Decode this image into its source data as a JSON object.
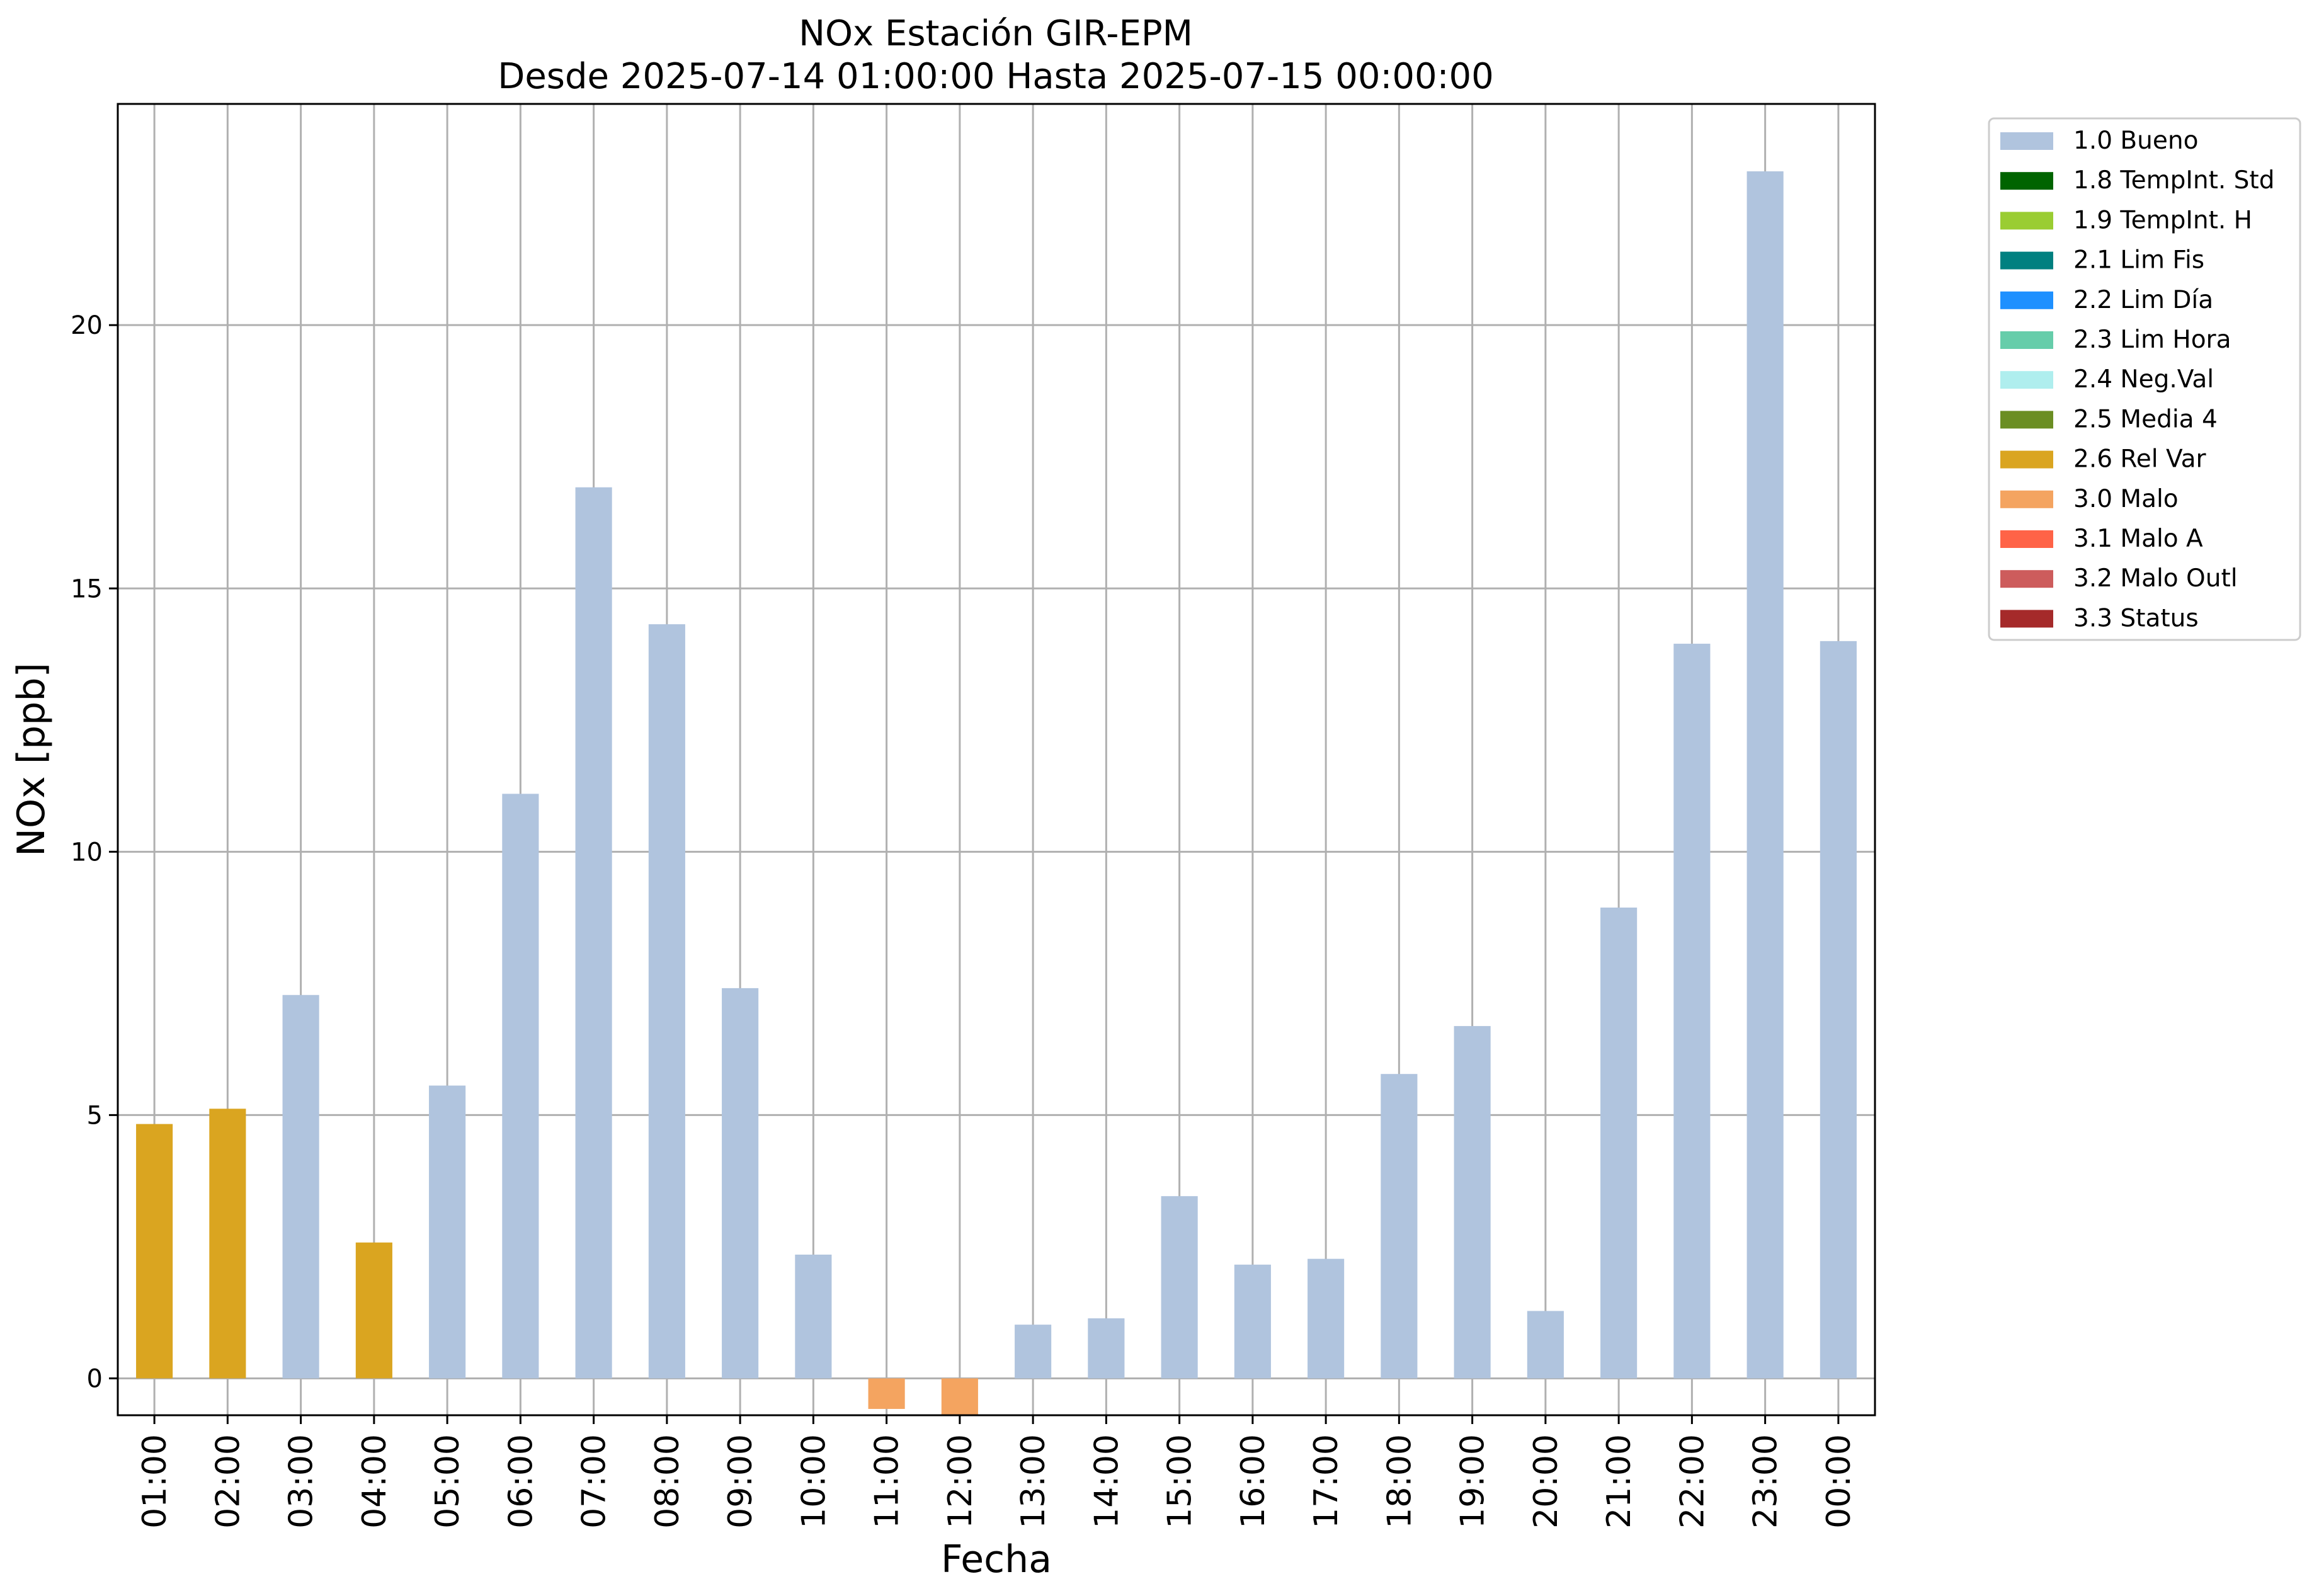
{
  "chart_data": {
    "type": "bar",
    "title_line1": "NOx Estación GIR-EPM",
    "title_line2": "Desde 2025-07-14 01:00:00 Hasta 2025-07-15 00:00:00",
    "xlabel": "Fecha",
    "ylabel": "NOx [ppb]",
    "ylim": [
      -0.7,
      24.2
    ],
    "yticks": [
      0,
      5,
      10,
      15,
      20
    ],
    "grid": true,
    "legend_placement": "outside-top-right",
    "categories": [
      "01:00",
      "02:00",
      "03:00",
      "04:00",
      "05:00",
      "06:00",
      "07:00",
      "08:00",
      "09:00",
      "10:00",
      "11:00",
      "12:00",
      "13:00",
      "14:00",
      "15:00",
      "16:00",
      "17:00",
      "18:00",
      "19:00",
      "20:00",
      "21:00",
      "22:00",
      "23:00",
      "00:00"
    ],
    "values": [
      4.83,
      5.12,
      7.28,
      2.58,
      5.56,
      11.1,
      16.92,
      14.32,
      7.41,
      2.35,
      -0.58,
      -0.7,
      1.02,
      1.14,
      3.46,
      2.16,
      2.27,
      5.78,
      6.69,
      1.28,
      8.94,
      13.95,
      22.92,
      14.0
    ],
    "quality": [
      "2.6 Rel Var",
      "2.6 Rel Var",
      "1.0 Bueno",
      "2.6 Rel Var",
      "1.0 Bueno",
      "1.0 Bueno",
      "1.0 Bueno",
      "1.0 Bueno",
      "1.0 Bueno",
      "1.0 Bueno",
      "3.0 Malo",
      "3.0 Malo",
      "1.0 Bueno",
      "1.0 Bueno",
      "1.0 Bueno",
      "1.0 Bueno",
      "1.0 Bueno",
      "1.0 Bueno",
      "1.0 Bueno",
      "1.0 Bueno",
      "1.0 Bueno",
      "1.0 Bueno",
      "1.0 Bueno",
      "1.0 Bueno"
    ],
    "legend": [
      {
        "label": "1.0 Bueno",
        "color": "#b0c4de"
      },
      {
        "label": "1.8 TempInt. Std",
        "color": "#006400"
      },
      {
        "label": "1.9 TempInt. H",
        "color": "#9acd32"
      },
      {
        "label": "2.1 Lim Fis",
        "color": "#008080"
      },
      {
        "label": "2.2 Lim Día",
        "color": "#1e90ff"
      },
      {
        "label": "2.3 Lim Hora",
        "color": "#66cdaa"
      },
      {
        "label": "2.4 Neg.Val",
        "color": "#afeeee"
      },
      {
        "label": "2.5 Media 4",
        "color": "#6b8e23"
      },
      {
        "label": "2.6 Rel Var",
        "color": "#daa520"
      },
      {
        "label": "3.0 Malo",
        "color": "#f4a460"
      },
      {
        "label": "3.1 Malo A",
        "color": "#ff6347"
      },
      {
        "label": "3.2 Malo Outl",
        "color": "#cd5c5c"
      },
      {
        "label": "3.3 Status",
        "color": "#a52a2a"
      }
    ]
  }
}
